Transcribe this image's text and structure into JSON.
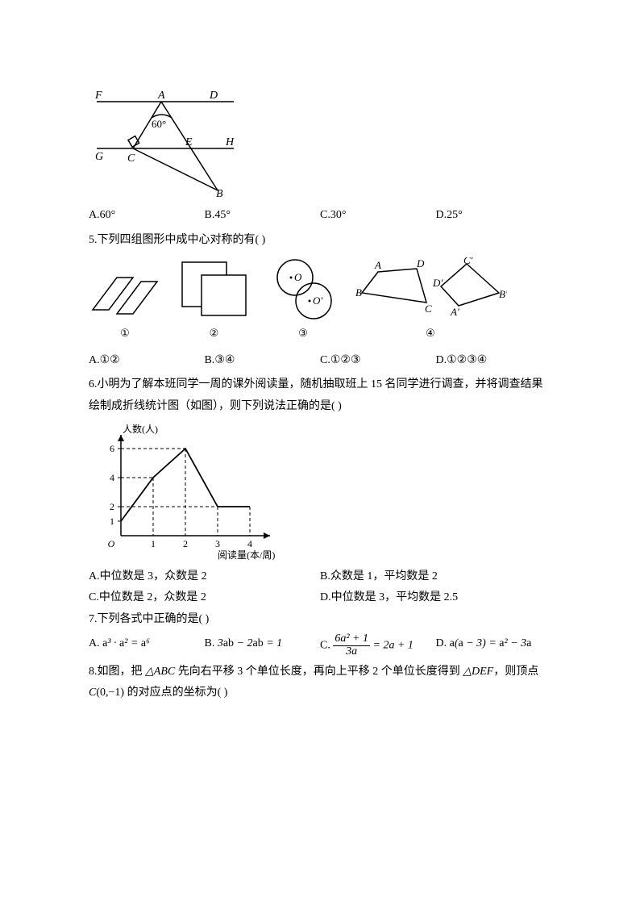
{
  "q4": {
    "figure": {
      "labels": {
        "F": "F",
        "A": "A",
        "D": "D",
        "G": "G",
        "C": "C",
        "E": "E",
        "H": "H",
        "B": "B",
        "angle": "60°"
      },
      "stroke": "#000000",
      "stroke_width": 1.5,
      "font_size": 14
    },
    "options": {
      "A": "A.60°",
      "B": "B.45°",
      "C": "C.30°",
      "D": "D.25°"
    }
  },
  "q5": {
    "stem": "5.下列四组图形中成中心对称的有(    )",
    "labels": {
      "n1": "①",
      "n2": "②",
      "n3": "③",
      "n4": "④",
      "O": "O",
      "Op": "O'",
      "A": "A",
      "B": "B",
      "C": "C",
      "D": "D",
      "Ap": "A'",
      "Bp": "B'",
      "Cp": "C'",
      "Dp": "D'"
    },
    "style": {
      "stroke": "#000000",
      "stroke_width": 1.5,
      "font_size": 13
    },
    "options": {
      "A": "A.①②",
      "B": "B.③④",
      "C": "C.①②③",
      "D": "D.①②③④"
    }
  },
  "q6": {
    "stem1": "6.小明为了解本班同学一周的课外阅读量，随机抽取班上 15 名同学进行调查，并将调查结果绘制成折线统计图（如图），则下列说法正确的是(    )",
    "chart": {
      "type": "line",
      "x_values": [
        0,
        1,
        2,
        3,
        4
      ],
      "y_values": [
        1,
        4,
        6,
        2,
        2
      ],
      "y_ticks": [
        1,
        2,
        4,
        6
      ],
      "x_ticks": [
        1,
        2,
        3,
        4
      ],
      "ylabel": "人数(人)",
      "xlabel": "阅读量(本/周)",
      "stroke": "#000000",
      "font_size": 12
    },
    "options": {
      "A": "A.中位数是 3，众数是 2",
      "B": "B.众数是 1，平均数是 2",
      "C": "C.中位数是 2，众数是 2",
      "D": "D.中位数是 3，平均数是 2.5"
    }
  },
  "q7": {
    "stem": "7.下列各式中正确的是(    )",
    "options": {
      "A_pre": "A. ",
      "A_math": "a³ · a² = a⁶",
      "B_pre": "B. ",
      "B_math": "3ab − 2ab = 1",
      "C_pre": "C. ",
      "C_num": "6a² + 1",
      "C_den": "3a",
      "C_rhs": " = 2a + 1",
      "D_pre": "D. ",
      "D_math": "a(a − 3) = a² − 3a"
    }
  },
  "q8": {
    "stem_p1": "8.如图，把 ",
    "tri1": "△ABC",
    "stem_p2": " 先向右平移 3 个单位长度，再向上平移 2 个单位长度得到 ",
    "tri2": "△DEF",
    "stem_p3": "，则顶点",
    "line2_pre": "C",
    "line2_coord": "(0,−1)",
    "line2_post": " 的对应点的坐标为(    )"
  }
}
